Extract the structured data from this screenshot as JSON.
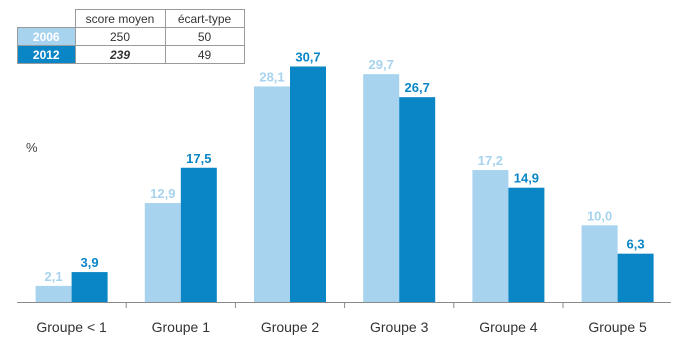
{
  "table": {
    "headers": [
      "score moyen",
      "écart-type"
    ],
    "rows": [
      {
        "year": "2006",
        "score": "250",
        "sd": "50"
      },
      {
        "year": "2012",
        "score": "239",
        "sd": "49"
      }
    ]
  },
  "colors": {
    "series_2006": "#a7d3ef",
    "series_2012": "#0a86c6",
    "axis": "#8a8a8a"
  },
  "chart_data": {
    "type": "bar",
    "ylabel": "%",
    "ylim": [
      0,
      33
    ],
    "categories": [
      "Groupe < 1",
      "Groupe 1",
      "Groupe 2",
      "Groupe 3",
      "Groupe 4",
      "Groupe 5"
    ],
    "series": [
      {
        "name": "2006",
        "values": [
          2.1,
          12.9,
          28.1,
          29.7,
          17.2,
          10.0
        ],
        "labels": [
          "2,1",
          "12,9",
          "28,1",
          "29,7",
          "17,2",
          "10,0"
        ]
      },
      {
        "name": "2012",
        "values": [
          3.9,
          17.5,
          30.7,
          26.7,
          14.9,
          6.3
        ],
        "labels": [
          "3,9",
          "17,5",
          "30,7",
          "26,7",
          "14,9",
          "6,3"
        ]
      }
    ]
  }
}
